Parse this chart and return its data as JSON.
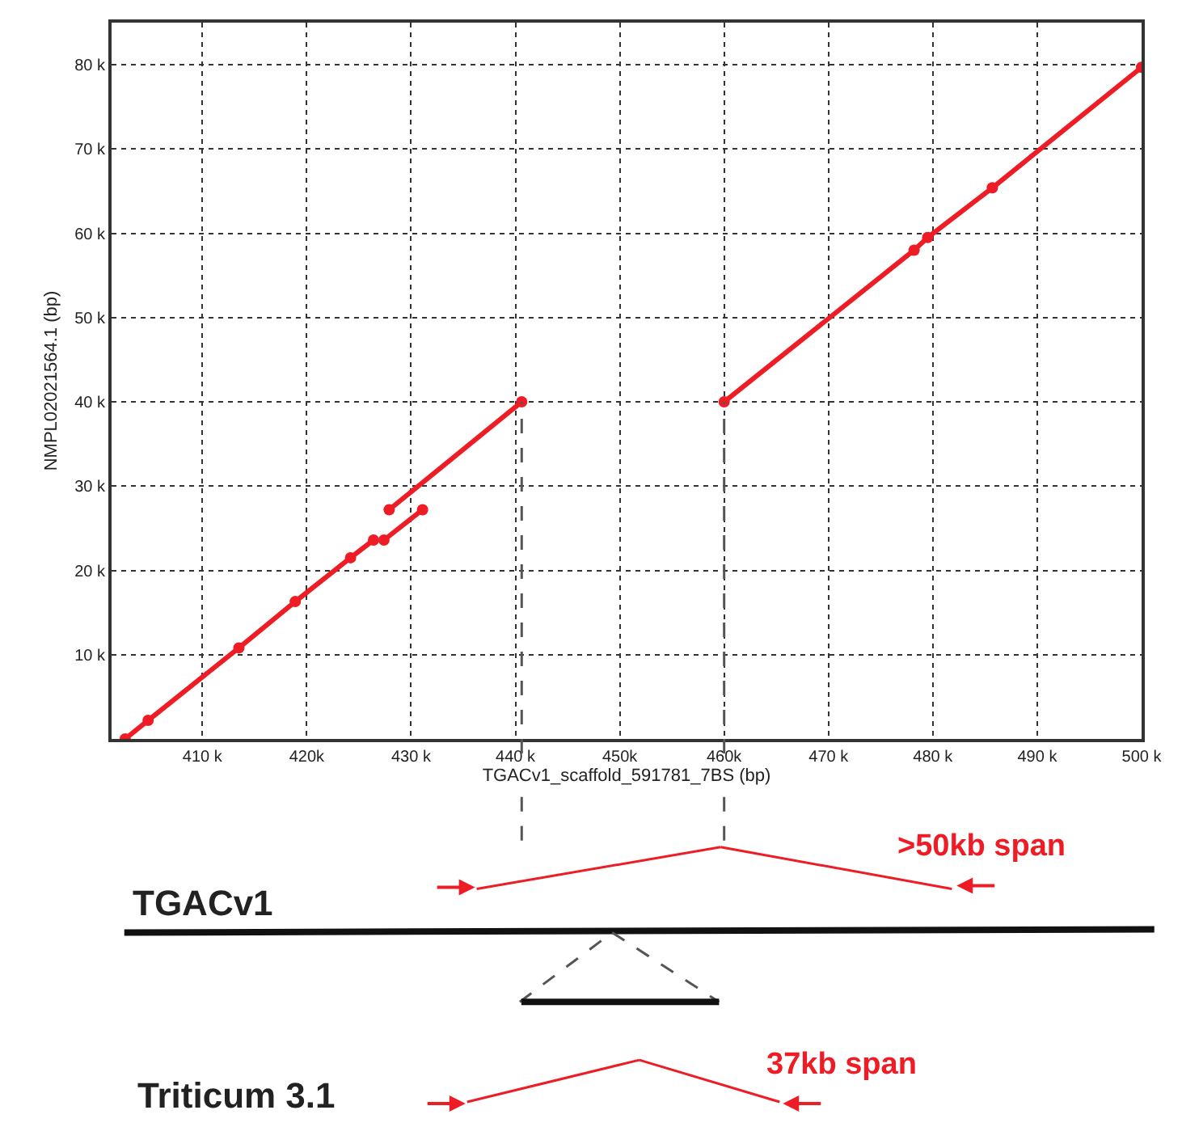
{
  "chart_data": {
    "type": "line",
    "xlabel": "TGACv1_scaffold_591781_7BS (bp)",
    "ylabel": "NMPL02021564.1 (bp)",
    "xlim": [
      401300,
      500000
    ],
    "ylim": [
      0,
      85000
    ],
    "xticks": [
      {
        "value": 410000,
        "label": "410 k"
      },
      {
        "value": 420000,
        "label": "420k"
      },
      {
        "value": 430000,
        "label": "430 k"
      },
      {
        "value": 440000,
        "label": "440 k"
      },
      {
        "value": 450000,
        "label": "450k"
      },
      {
        "value": 460000,
        "label": "460k"
      },
      {
        "value": 470000,
        "label": "470 k"
      },
      {
        "value": 480000,
        "label": "480 k"
      },
      {
        "value": 490000,
        "label": "490 k"
      },
      {
        "value": 500000,
        "label": "500 k"
      }
    ],
    "yticks": [
      {
        "value": 10000,
        "label": "10 k"
      },
      {
        "value": 20000,
        "label": "20 k"
      },
      {
        "value": 30000,
        "label": "30 k"
      },
      {
        "value": 40000,
        "label": "40 k"
      },
      {
        "value": 50000,
        "label": "50 k"
      },
      {
        "value": 60000,
        "label": "60 k"
      },
      {
        "value": 70000,
        "label": "70 k"
      },
      {
        "value": 80000,
        "label": "80 k"
      }
    ],
    "grid": true,
    "marker": "circle",
    "line_style": "solid",
    "series": [
      {
        "color": "#ee1c24",
        "x": [
          402600,
          404800,
          413500,
          418900,
          424200,
          426400
        ],
        "values": [
          0,
          2200,
          10800,
          16300,
          21500,
          23600
        ]
      },
      {
        "color": "#ee1c24",
        "x": [
          427400,
          431100
        ],
        "values": [
          23600,
          27200
        ]
      },
      {
        "color": "#ee1c24",
        "x": [
          427900,
          440600
        ],
        "values": [
          27200,
          40000
        ]
      },
      {
        "color": "#ee1c24",
        "x": [
          460000,
          478200,
          479500,
          485700,
          500000
        ],
        "values": [
          40000,
          58000,
          59500,
          65400,
          79700
        ]
      }
    ],
    "ref_lines": [
      {
        "axis": "x",
        "value": 440600,
        "color": "#555555",
        "line_style": "dashed"
      },
      {
        "axis": "x",
        "value": 460000,
        "color": "#555555",
        "line_style": "dashed"
      }
    ],
    "annotations": [
      "TGACv1",
      ">50kb span",
      "Triticum 3.1",
      "37kb span"
    ]
  }
}
